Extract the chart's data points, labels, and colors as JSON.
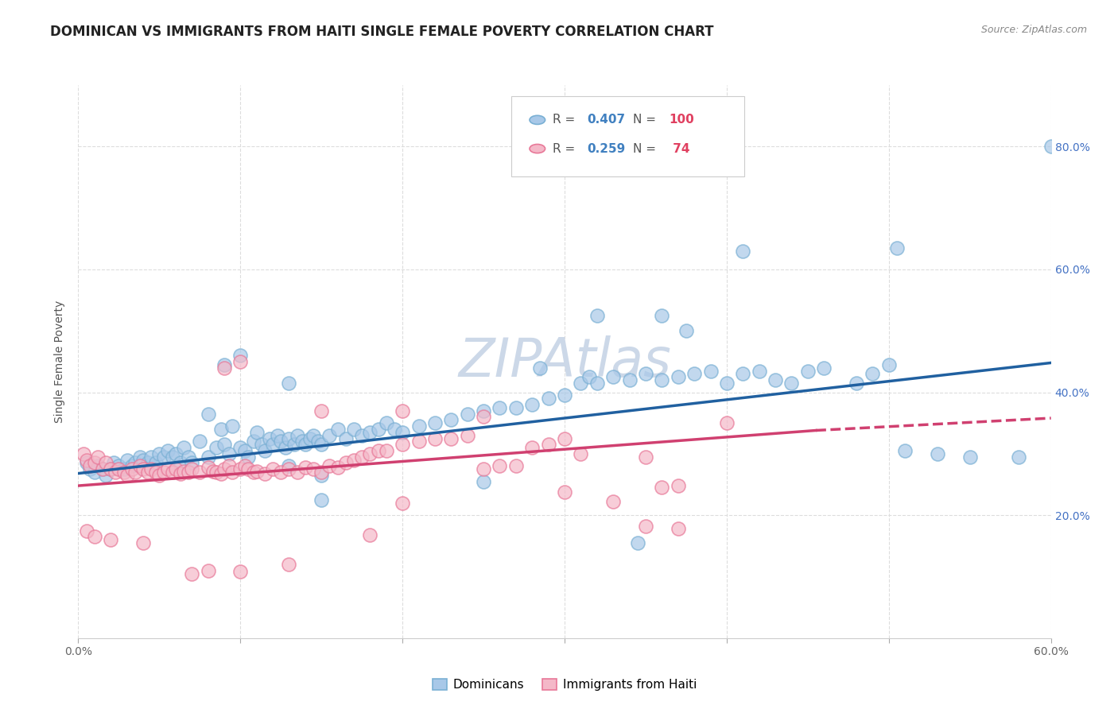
{
  "title": "DOMINICAN VS IMMIGRANTS FROM HAITI SINGLE FEMALE POVERTY CORRELATION CHART",
  "source": "Source: ZipAtlas.com",
  "ylabel": "Single Female Poverty",
  "watermark": "ZIPAtlas",
  "legend_blue_label": "Dominicans",
  "legend_pink_label": "Immigrants from Haiti",
  "xlim": [
    0.0,
    0.6
  ],
  "ylim": [
    0.0,
    0.9
  ],
  "yticks": [
    0.2,
    0.4,
    0.6,
    0.8
  ],
  "ytick_labels": [
    "20.0%",
    "40.0%",
    "60.0%",
    "80.0%"
  ],
  "xticks": [
    0.0,
    0.1,
    0.2,
    0.3,
    0.4,
    0.5,
    0.6
  ],
  "blue_color": "#a8c8e8",
  "blue_edge_color": "#7ab0d4",
  "pink_color": "#f4b8c8",
  "pink_edge_color": "#e87898",
  "blue_line_color": "#2060a0",
  "pink_line_color": "#d04070",
  "legend_r_color": "#4080c0",
  "legend_n_color": "#e04060",
  "blue_points": [
    [
      0.005,
      0.285
    ],
    [
      0.007,
      0.275
    ],
    [
      0.01,
      0.27
    ],
    [
      0.012,
      0.28
    ],
    [
      0.015,
      0.275
    ],
    [
      0.017,
      0.265
    ],
    [
      0.02,
      0.275
    ],
    [
      0.022,
      0.285
    ],
    [
      0.025,
      0.28
    ],
    [
      0.028,
      0.275
    ],
    [
      0.03,
      0.29
    ],
    [
      0.033,
      0.28
    ],
    [
      0.035,
      0.285
    ],
    [
      0.038,
      0.295
    ],
    [
      0.04,
      0.29
    ],
    [
      0.043,
      0.285
    ],
    [
      0.045,
      0.295
    ],
    [
      0.048,
      0.285
    ],
    [
      0.05,
      0.3
    ],
    [
      0.053,
      0.295
    ],
    [
      0.055,
      0.305
    ],
    [
      0.058,
      0.295
    ],
    [
      0.06,
      0.3
    ],
    [
      0.063,
      0.285
    ],
    [
      0.065,
      0.31
    ],
    [
      0.068,
      0.295
    ],
    [
      0.07,
      0.285
    ],
    [
      0.075,
      0.32
    ],
    [
      0.08,
      0.295
    ],
    [
      0.085,
      0.31
    ],
    [
      0.088,
      0.34
    ],
    [
      0.09,
      0.315
    ],
    [
      0.093,
      0.3
    ],
    [
      0.095,
      0.345
    ],
    [
      0.1,
      0.31
    ],
    [
      0.103,
      0.305
    ],
    [
      0.105,
      0.295
    ],
    [
      0.108,
      0.32
    ],
    [
      0.11,
      0.335
    ],
    [
      0.113,
      0.315
    ],
    [
      0.115,
      0.305
    ],
    [
      0.118,
      0.325
    ],
    [
      0.12,
      0.315
    ],
    [
      0.123,
      0.33
    ],
    [
      0.125,
      0.32
    ],
    [
      0.128,
      0.31
    ],
    [
      0.13,
      0.325
    ],
    [
      0.133,
      0.315
    ],
    [
      0.135,
      0.33
    ],
    [
      0.138,
      0.32
    ],
    [
      0.14,
      0.315
    ],
    [
      0.143,
      0.325
    ],
    [
      0.145,
      0.33
    ],
    [
      0.148,
      0.32
    ],
    [
      0.15,
      0.315
    ],
    [
      0.155,
      0.33
    ],
    [
      0.16,
      0.34
    ],
    [
      0.165,
      0.325
    ],
    [
      0.17,
      0.34
    ],
    [
      0.175,
      0.33
    ],
    [
      0.18,
      0.335
    ],
    [
      0.185,
      0.34
    ],
    [
      0.19,
      0.35
    ],
    [
      0.195,
      0.34
    ],
    [
      0.2,
      0.335
    ],
    [
      0.21,
      0.345
    ],
    [
      0.22,
      0.35
    ],
    [
      0.23,
      0.355
    ],
    [
      0.24,
      0.365
    ],
    [
      0.25,
      0.37
    ],
    [
      0.26,
      0.375
    ],
    [
      0.27,
      0.375
    ],
    [
      0.28,
      0.38
    ],
    [
      0.29,
      0.39
    ],
    [
      0.3,
      0.395
    ],
    [
      0.31,
      0.415
    ],
    [
      0.315,
      0.425
    ],
    [
      0.32,
      0.415
    ],
    [
      0.33,
      0.425
    ],
    [
      0.34,
      0.42
    ],
    [
      0.35,
      0.43
    ],
    [
      0.36,
      0.42
    ],
    [
      0.37,
      0.425
    ],
    [
      0.38,
      0.43
    ],
    [
      0.39,
      0.435
    ],
    [
      0.4,
      0.415
    ],
    [
      0.41,
      0.43
    ],
    [
      0.42,
      0.435
    ],
    [
      0.43,
      0.42
    ],
    [
      0.44,
      0.415
    ],
    [
      0.45,
      0.435
    ],
    [
      0.46,
      0.44
    ],
    [
      0.48,
      0.415
    ],
    [
      0.49,
      0.43
    ],
    [
      0.5,
      0.445
    ],
    [
      0.09,
      0.445
    ],
    [
      0.1,
      0.46
    ],
    [
      0.13,
      0.415
    ],
    [
      0.08,
      0.365
    ],
    [
      0.285,
      0.44
    ],
    [
      0.13,
      0.28
    ],
    [
      0.15,
      0.265
    ],
    [
      0.25,
      0.255
    ],
    [
      0.15,
      0.225
    ],
    [
      0.345,
      0.155
    ],
    [
      0.32,
      0.525
    ],
    [
      0.36,
      0.525
    ],
    [
      0.375,
      0.5
    ],
    [
      0.41,
      0.63
    ],
    [
      0.505,
      0.635
    ],
    [
      0.6,
      0.8
    ],
    [
      0.51,
      0.305
    ],
    [
      0.53,
      0.3
    ],
    [
      0.55,
      0.295
    ],
    [
      0.58,
      0.295
    ]
  ],
  "pink_points": [
    [
      0.003,
      0.3
    ],
    [
      0.005,
      0.29
    ],
    [
      0.007,
      0.28
    ],
    [
      0.01,
      0.285
    ],
    [
      0.012,
      0.295
    ],
    [
      0.015,
      0.275
    ],
    [
      0.017,
      0.285
    ],
    [
      0.02,
      0.275
    ],
    [
      0.023,
      0.27
    ],
    [
      0.025,
      0.275
    ],
    [
      0.028,
      0.27
    ],
    [
      0.03,
      0.265
    ],
    [
      0.033,
      0.275
    ],
    [
      0.035,
      0.27
    ],
    [
      0.038,
      0.28
    ],
    [
      0.04,
      0.275
    ],
    [
      0.043,
      0.27
    ],
    [
      0.045,
      0.275
    ],
    [
      0.048,
      0.27
    ],
    [
      0.05,
      0.265
    ],
    [
      0.053,
      0.27
    ],
    [
      0.055,
      0.275
    ],
    [
      0.058,
      0.27
    ],
    [
      0.06,
      0.275
    ],
    [
      0.063,
      0.268
    ],
    [
      0.065,
      0.272
    ],
    [
      0.068,
      0.27
    ],
    [
      0.07,
      0.275
    ],
    [
      0.075,
      0.27
    ],
    [
      0.08,
      0.278
    ],
    [
      0.083,
      0.272
    ],
    [
      0.085,
      0.27
    ],
    [
      0.088,
      0.268
    ],
    [
      0.09,
      0.275
    ],
    [
      0.093,
      0.28
    ],
    [
      0.095,
      0.27
    ],
    [
      0.1,
      0.275
    ],
    [
      0.103,
      0.28
    ],
    [
      0.105,
      0.275
    ],
    [
      0.108,
      0.27
    ],
    [
      0.11,
      0.272
    ],
    [
      0.115,
      0.268
    ],
    [
      0.12,
      0.275
    ],
    [
      0.125,
      0.27
    ],
    [
      0.13,
      0.275
    ],
    [
      0.135,
      0.27
    ],
    [
      0.14,
      0.278
    ],
    [
      0.145,
      0.275
    ],
    [
      0.15,
      0.27
    ],
    [
      0.155,
      0.28
    ],
    [
      0.16,
      0.278
    ],
    [
      0.165,
      0.285
    ],
    [
      0.17,
      0.29
    ],
    [
      0.175,
      0.295
    ],
    [
      0.18,
      0.3
    ],
    [
      0.185,
      0.305
    ],
    [
      0.19,
      0.305
    ],
    [
      0.2,
      0.315
    ],
    [
      0.21,
      0.32
    ],
    [
      0.22,
      0.325
    ],
    [
      0.23,
      0.325
    ],
    [
      0.24,
      0.33
    ],
    [
      0.25,
      0.275
    ],
    [
      0.26,
      0.28
    ],
    [
      0.27,
      0.28
    ],
    [
      0.28,
      0.31
    ],
    [
      0.29,
      0.315
    ],
    [
      0.3,
      0.325
    ],
    [
      0.31,
      0.3
    ],
    [
      0.35,
      0.295
    ],
    [
      0.36,
      0.245
    ],
    [
      0.37,
      0.248
    ],
    [
      0.09,
      0.44
    ],
    [
      0.1,
      0.45
    ],
    [
      0.005,
      0.175
    ],
    [
      0.01,
      0.165
    ],
    [
      0.02,
      0.16
    ],
    [
      0.04,
      0.155
    ],
    [
      0.07,
      0.105
    ],
    [
      0.08,
      0.11
    ],
    [
      0.1,
      0.108
    ],
    [
      0.13,
      0.12
    ],
    [
      0.15,
      0.37
    ],
    [
      0.2,
      0.37
    ],
    [
      0.25,
      0.36
    ],
    [
      0.2,
      0.22
    ],
    [
      0.18,
      0.168
    ],
    [
      0.3,
      0.238
    ],
    [
      0.33,
      0.222
    ],
    [
      0.35,
      0.182
    ],
    [
      0.37,
      0.178
    ],
    [
      0.4,
      0.35
    ]
  ],
  "blue_line": [
    0.0,
    0.268,
    0.6,
    0.448
  ],
  "pink_line_solid": [
    0.0,
    0.248,
    0.455,
    0.338
  ],
  "pink_line_dash": [
    0.455,
    0.338,
    0.6,
    0.358
  ],
  "title_fontsize": 12,
  "source_fontsize": 9,
  "axis_label_fontsize": 10,
  "tick_fontsize": 10,
  "legend_fontsize": 11,
  "watermark_fontsize": 48,
  "watermark_color": "#ccd8e8",
  "background_color": "#ffffff",
  "grid_color": "#dddddd"
}
